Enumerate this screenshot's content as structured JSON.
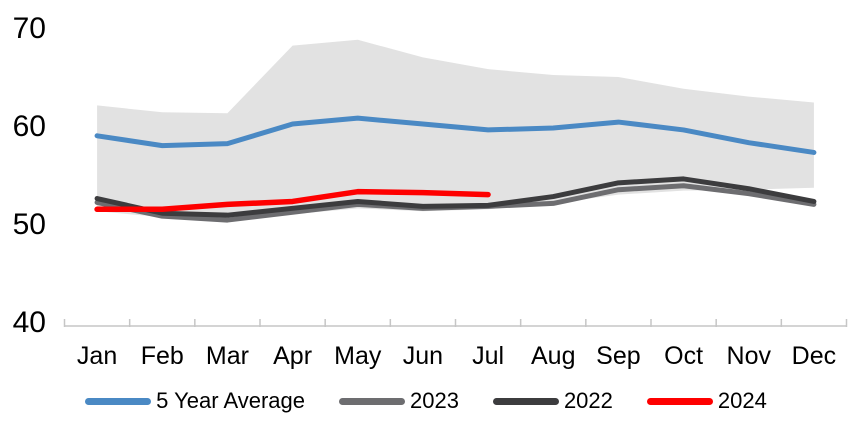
{
  "chart_data": {
    "type": "line",
    "title": "",
    "xlabel": "",
    "ylabel": "",
    "categories": [
      "Jan",
      "Feb",
      "Mar",
      "Apr",
      "May",
      "Jun",
      "Jul",
      "Aug",
      "Sep",
      "Oct",
      "Nov",
      "Dec"
    ],
    "ylim": [
      40,
      70
    ],
    "yticks": [
      40,
      50,
      60,
      70
    ],
    "grid": false,
    "legend_position": "bottom",
    "band": {
      "name": "5-year-range",
      "color": "#e2e2e2",
      "top": [
        62.1,
        61.4,
        61.3,
        68.2,
        68.8,
        67.0,
        65.8,
        65.2,
        65.0,
        63.8,
        63.0,
        62.4
      ],
      "bottom": [
        51.3,
        50.7,
        50.4,
        51.0,
        51.6,
        51.3,
        51.5,
        52.1,
        53.0,
        53.4,
        53.5,
        53.7
      ]
    },
    "series": [
      {
        "name": "5 Year Average",
        "color": "#4a89c4",
        "width": 5,
        "values": [
          59.0,
          58.0,
          58.2,
          60.2,
          60.8,
          60.2,
          59.6,
          59.8,
          60.4,
          59.6,
          58.3,
          57.3
        ]
      },
      {
        "name": "2023",
        "color": "#6d6d70",
        "width": 5,
        "values": [
          52.2,
          50.8,
          50.4,
          51.2,
          52.0,
          51.6,
          51.8,
          52.1,
          53.5,
          53.9,
          53.1,
          52.0
        ]
      },
      {
        "name": "2022",
        "color": "#3c3c3e",
        "width": 5,
        "values": [
          52.6,
          51.1,
          50.9,
          51.6,
          52.3,
          51.8,
          51.9,
          52.8,
          54.2,
          54.6,
          53.6,
          52.3
        ]
      },
      {
        "name": "2024",
        "color": "#fe0000",
        "width": 5.5,
        "values": [
          51.5,
          51.5,
          52.0,
          52.3,
          53.3,
          53.2,
          53.0
        ]
      }
    ]
  },
  "colors": {
    "axis": "#c6c6c6",
    "text": "#000000",
    "background": "#ffffff"
  }
}
